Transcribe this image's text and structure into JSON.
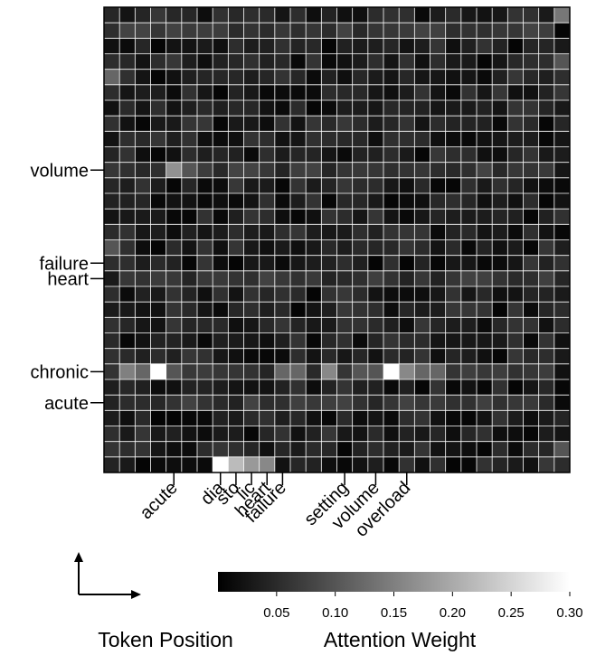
{
  "chart_data": {
    "type": "heatmap",
    "rows": 30,
    "cols": 30,
    "grid": true,
    "y_token_labels": [
      {
        "row": 10,
        "text": "volume"
      },
      {
        "row": 16,
        "text": "failure"
      },
      {
        "row": 17,
        "text": "heart"
      },
      {
        "row": 23,
        "text": "chronic"
      },
      {
        "row": 25,
        "text": "acute"
      }
    ],
    "x_token_labels": [
      {
        "col": 4,
        "text": "acute"
      },
      {
        "col": 7,
        "text": "dia"
      },
      {
        "col": 8,
        "text": "sto"
      },
      {
        "col": 9,
        "text": "lic"
      },
      {
        "col": 10,
        "text": "heart"
      },
      {
        "col": 11,
        "text": "failure"
      },
      {
        "col": 15,
        "text": "setting"
      },
      {
        "col": 17,
        "text": "volume"
      },
      {
        "col": 19,
        "text": "overload"
      }
    ],
    "cell_overrides": [
      {
        "row": 23,
        "col": 3,
        "value": 0.3
      },
      {
        "row": 23,
        "col": 18,
        "value": 0.3
      },
      {
        "row": 29,
        "col": 7,
        "value": 0.3
      },
      {
        "row": 29,
        "col": 8,
        "value": 0.22
      },
      {
        "row": 29,
        "col": 9,
        "value": 0.18
      },
      {
        "row": 29,
        "col": 10,
        "value": 0.16
      },
      {
        "row": 23,
        "col": 1,
        "value": 0.15
      },
      {
        "row": 23,
        "col": 2,
        "value": 0.12
      },
      {
        "row": 23,
        "col": 4,
        "value": 0.1
      },
      {
        "row": 23,
        "col": 14,
        "value": 0.16
      },
      {
        "row": 23,
        "col": 19,
        "value": 0.16
      },
      {
        "row": 23,
        "col": 20,
        "value": 0.12
      },
      {
        "row": 23,
        "col": 21,
        "value": 0.12
      },
      {
        "row": 23,
        "col": 11,
        "value": 0.12
      },
      {
        "row": 23,
        "col": 12,
        "value": 0.12
      },
      {
        "row": 23,
        "col": 16,
        "value": 0.1
      },
      {
        "row": 23,
        "col": 17,
        "value": 0.1
      },
      {
        "row": 10,
        "col": 4,
        "value": 0.17
      },
      {
        "row": 10,
        "col": 5,
        "value": 0.1
      },
      {
        "row": 0,
        "col": 29,
        "value": 0.14
      },
      {
        "row": 4,
        "col": 0,
        "value": 0.12
      },
      {
        "row": 3,
        "col": 29,
        "value": 0.1
      },
      {
        "row": 15,
        "col": 0,
        "value": 0.1
      },
      {
        "row": 28,
        "col": 29,
        "value": 0.1
      }
    ],
    "colorbar": {
      "min": 0.0,
      "max": 0.3,
      "ticks": [
        "0.05",
        "0.10",
        "0.15",
        "0.20",
        "0.25",
        "0.30"
      ],
      "tick_values": [
        0.05,
        0.1,
        0.15,
        0.2,
        0.25,
        0.3
      ],
      "label": "Attention Weight",
      "colormap": "gray"
    },
    "axis_caption": "Token Position"
  }
}
